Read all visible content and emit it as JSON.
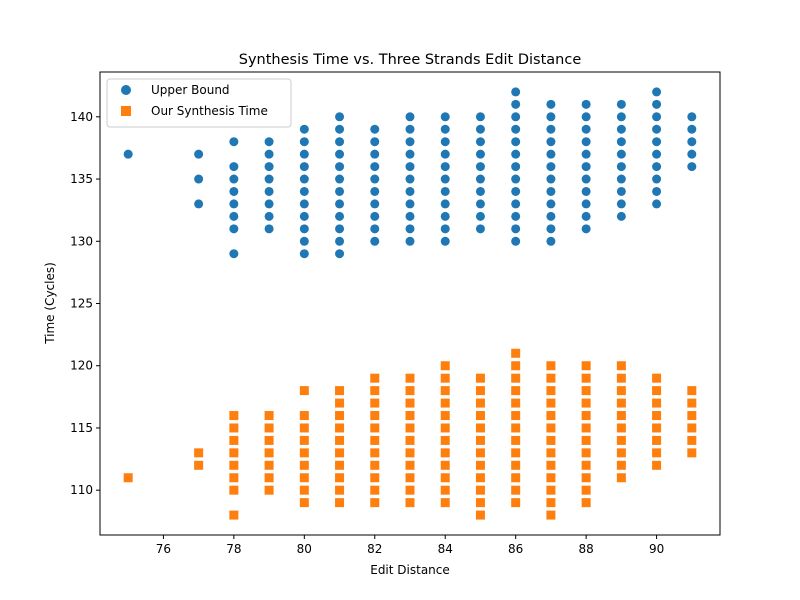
{
  "chart_data": {
    "type": "scatter",
    "title": "Synthesis Time vs. Three Strands Edit Distance",
    "xlabel": "Edit Distance",
    "ylabel": "Time (Cycles)",
    "xlim": [
      74.2,
      91.8
    ],
    "ylim": [
      106.4,
      143.6
    ],
    "xticks": [
      76,
      78,
      80,
      82,
      84,
      86,
      88,
      90
    ],
    "yticks": [
      110,
      115,
      120,
      125,
      130,
      135,
      140
    ],
    "grid": false,
    "legend_position": "top-left",
    "series": [
      {
        "name": "Upper Bound",
        "marker": "circle",
        "color": "#1f77b4",
        "points": [
          [
            75,
            137
          ],
          [
            77,
            133
          ],
          [
            77,
            135
          ],
          [
            77,
            137
          ],
          [
            78,
            129
          ],
          [
            78,
            131
          ],
          [
            78,
            132
          ],
          [
            78,
            133
          ],
          [
            78,
            134
          ],
          [
            78,
            135
          ],
          [
            78,
            136
          ],
          [
            78,
            138
          ],
          [
            79,
            131
          ],
          [
            79,
            132
          ],
          [
            79,
            133
          ],
          [
            79,
            134
          ],
          [
            79,
            135
          ],
          [
            79,
            136
          ],
          [
            79,
            137
          ],
          [
            79,
            138
          ],
          [
            80,
            129
          ],
          [
            80,
            130
          ],
          [
            80,
            131
          ],
          [
            80,
            132
          ],
          [
            80,
            133
          ],
          [
            80,
            134
          ],
          [
            80,
            135
          ],
          [
            80,
            136
          ],
          [
            80,
            137
          ],
          [
            80,
            138
          ],
          [
            80,
            139
          ],
          [
            81,
            129
          ],
          [
            81,
            130
          ],
          [
            81,
            131
          ],
          [
            81,
            132
          ],
          [
            81,
            133
          ],
          [
            81,
            134
          ],
          [
            81,
            135
          ],
          [
            81,
            136
          ],
          [
            81,
            137
          ],
          [
            81,
            138
          ],
          [
            81,
            139
          ],
          [
            81,
            140
          ],
          [
            82,
            130
          ],
          [
            82,
            131
          ],
          [
            82,
            132
          ],
          [
            82,
            133
          ],
          [
            82,
            134
          ],
          [
            82,
            135
          ],
          [
            82,
            136
          ],
          [
            82,
            137
          ],
          [
            82,
            138
          ],
          [
            82,
            139
          ],
          [
            83,
            130
          ],
          [
            83,
            131
          ],
          [
            83,
            132
          ],
          [
            83,
            133
          ],
          [
            83,
            134
          ],
          [
            83,
            135
          ],
          [
            83,
            136
          ],
          [
            83,
            137
          ],
          [
            83,
            138
          ],
          [
            83,
            139
          ],
          [
            83,
            140
          ],
          [
            84,
            130
          ],
          [
            84,
            131
          ],
          [
            84,
            132
          ],
          [
            84,
            133
          ],
          [
            84,
            134
          ],
          [
            84,
            135
          ],
          [
            84,
            136
          ],
          [
            84,
            137
          ],
          [
            84,
            138
          ],
          [
            84,
            139
          ],
          [
            84,
            140
          ],
          [
            85,
            131
          ],
          [
            85,
            132
          ],
          [
            85,
            133
          ],
          [
            85,
            134
          ],
          [
            85,
            135
          ],
          [
            85,
            136
          ],
          [
            85,
            137
          ],
          [
            85,
            138
          ],
          [
            85,
            139
          ],
          [
            85,
            140
          ],
          [
            86,
            130
          ],
          [
            86,
            131
          ],
          [
            86,
            132
          ],
          [
            86,
            133
          ],
          [
            86,
            134
          ],
          [
            86,
            135
          ],
          [
            86,
            136
          ],
          [
            86,
            137
          ],
          [
            86,
            138
          ],
          [
            86,
            139
          ],
          [
            86,
            140
          ],
          [
            86,
            141
          ],
          [
            86,
            142
          ],
          [
            87,
            130
          ],
          [
            87,
            131
          ],
          [
            87,
            132
          ],
          [
            87,
            133
          ],
          [
            87,
            134
          ],
          [
            87,
            135
          ],
          [
            87,
            136
          ],
          [
            87,
            137
          ],
          [
            87,
            138
          ],
          [
            87,
            139
          ],
          [
            87,
            140
          ],
          [
            87,
            141
          ],
          [
            88,
            131
          ],
          [
            88,
            132
          ],
          [
            88,
            133
          ],
          [
            88,
            134
          ],
          [
            88,
            135
          ],
          [
            88,
            136
          ],
          [
            88,
            137
          ],
          [
            88,
            138
          ],
          [
            88,
            139
          ],
          [
            88,
            140
          ],
          [
            88,
            141
          ],
          [
            89,
            132
          ],
          [
            89,
            133
          ],
          [
            89,
            134
          ],
          [
            89,
            135
          ],
          [
            89,
            136
          ],
          [
            89,
            137
          ],
          [
            89,
            138
          ],
          [
            89,
            139
          ],
          [
            89,
            140
          ],
          [
            89,
            141
          ],
          [
            90,
            133
          ],
          [
            90,
            134
          ],
          [
            90,
            135
          ],
          [
            90,
            136
          ],
          [
            90,
            137
          ],
          [
            90,
            138
          ],
          [
            90,
            139
          ],
          [
            90,
            140
          ],
          [
            90,
            141
          ],
          [
            90,
            142
          ],
          [
            91,
            136
          ],
          [
            91,
            137
          ],
          [
            91,
            138
          ],
          [
            91,
            139
          ],
          [
            91,
            140
          ]
        ]
      },
      {
        "name": "Our Synthesis Time",
        "marker": "square",
        "color": "#ff7f0e",
        "points": [
          [
            75,
            111
          ],
          [
            77,
            112
          ],
          [
            77,
            113
          ],
          [
            78,
            108
          ],
          [
            78,
            110
          ],
          [
            78,
            111
          ],
          [
            78,
            112
          ],
          [
            78,
            113
          ],
          [
            78,
            114
          ],
          [
            78,
            115
          ],
          [
            78,
            116
          ],
          [
            79,
            110
          ],
          [
            79,
            111
          ],
          [
            79,
            112
          ],
          [
            79,
            113
          ],
          [
            79,
            114
          ],
          [
            79,
            115
          ],
          [
            79,
            116
          ],
          [
            80,
            109
          ],
          [
            80,
            110
          ],
          [
            80,
            111
          ],
          [
            80,
            112
          ],
          [
            80,
            113
          ],
          [
            80,
            114
          ],
          [
            80,
            115
          ],
          [
            80,
            116
          ],
          [
            80,
            118
          ],
          [
            81,
            109
          ],
          [
            81,
            110
          ],
          [
            81,
            111
          ],
          [
            81,
            112
          ],
          [
            81,
            113
          ],
          [
            81,
            114
          ],
          [
            81,
            115
          ],
          [
            81,
            116
          ],
          [
            81,
            117
          ],
          [
            81,
            118
          ],
          [
            82,
            109
          ],
          [
            82,
            110
          ],
          [
            82,
            111
          ],
          [
            82,
            112
          ],
          [
            82,
            113
          ],
          [
            82,
            114
          ],
          [
            82,
            115
          ],
          [
            82,
            116
          ],
          [
            82,
            117
          ],
          [
            82,
            118
          ],
          [
            82,
            119
          ],
          [
            83,
            109
          ],
          [
            83,
            110
          ],
          [
            83,
            111
          ],
          [
            83,
            112
          ],
          [
            83,
            113
          ],
          [
            83,
            114
          ],
          [
            83,
            115
          ],
          [
            83,
            116
          ],
          [
            83,
            117
          ],
          [
            83,
            118
          ],
          [
            83,
            119
          ],
          [
            84,
            109
          ],
          [
            84,
            110
          ],
          [
            84,
            111
          ],
          [
            84,
            112
          ],
          [
            84,
            113
          ],
          [
            84,
            114
          ],
          [
            84,
            115
          ],
          [
            84,
            116
          ],
          [
            84,
            117
          ],
          [
            84,
            118
          ],
          [
            84,
            119
          ],
          [
            84,
            120
          ],
          [
            85,
            108
          ],
          [
            85,
            109
          ],
          [
            85,
            110
          ],
          [
            85,
            111
          ],
          [
            85,
            112
          ],
          [
            85,
            113
          ],
          [
            85,
            114
          ],
          [
            85,
            115
          ],
          [
            85,
            116
          ],
          [
            85,
            117
          ],
          [
            85,
            118
          ],
          [
            85,
            119
          ],
          [
            86,
            109
          ],
          [
            86,
            110
          ],
          [
            86,
            111
          ],
          [
            86,
            112
          ],
          [
            86,
            113
          ],
          [
            86,
            114
          ],
          [
            86,
            115
          ],
          [
            86,
            116
          ],
          [
            86,
            117
          ],
          [
            86,
            118
          ],
          [
            86,
            119
          ],
          [
            86,
            120
          ],
          [
            86,
            121
          ],
          [
            87,
            108
          ],
          [
            87,
            109
          ],
          [
            87,
            110
          ],
          [
            87,
            111
          ],
          [
            87,
            112
          ],
          [
            87,
            113
          ],
          [
            87,
            114
          ],
          [
            87,
            115
          ],
          [
            87,
            116
          ],
          [
            87,
            117
          ],
          [
            87,
            118
          ],
          [
            87,
            119
          ],
          [
            87,
            120
          ],
          [
            88,
            109
          ],
          [
            88,
            110
          ],
          [
            88,
            111
          ],
          [
            88,
            112
          ],
          [
            88,
            113
          ],
          [
            88,
            114
          ],
          [
            88,
            115
          ],
          [
            88,
            116
          ],
          [
            88,
            117
          ],
          [
            88,
            118
          ],
          [
            88,
            119
          ],
          [
            88,
            120
          ],
          [
            89,
            111
          ],
          [
            89,
            112
          ],
          [
            89,
            113
          ],
          [
            89,
            114
          ],
          [
            89,
            115
          ],
          [
            89,
            116
          ],
          [
            89,
            117
          ],
          [
            89,
            118
          ],
          [
            89,
            119
          ],
          [
            89,
            120
          ],
          [
            90,
            112
          ],
          [
            90,
            113
          ],
          [
            90,
            114
          ],
          [
            90,
            115
          ],
          [
            90,
            116
          ],
          [
            90,
            117
          ],
          [
            90,
            118
          ],
          [
            90,
            119
          ],
          [
            91,
            113
          ],
          [
            91,
            114
          ],
          [
            91,
            115
          ],
          [
            91,
            116
          ],
          [
            91,
            117
          ],
          [
            91,
            118
          ]
        ]
      }
    ]
  }
}
